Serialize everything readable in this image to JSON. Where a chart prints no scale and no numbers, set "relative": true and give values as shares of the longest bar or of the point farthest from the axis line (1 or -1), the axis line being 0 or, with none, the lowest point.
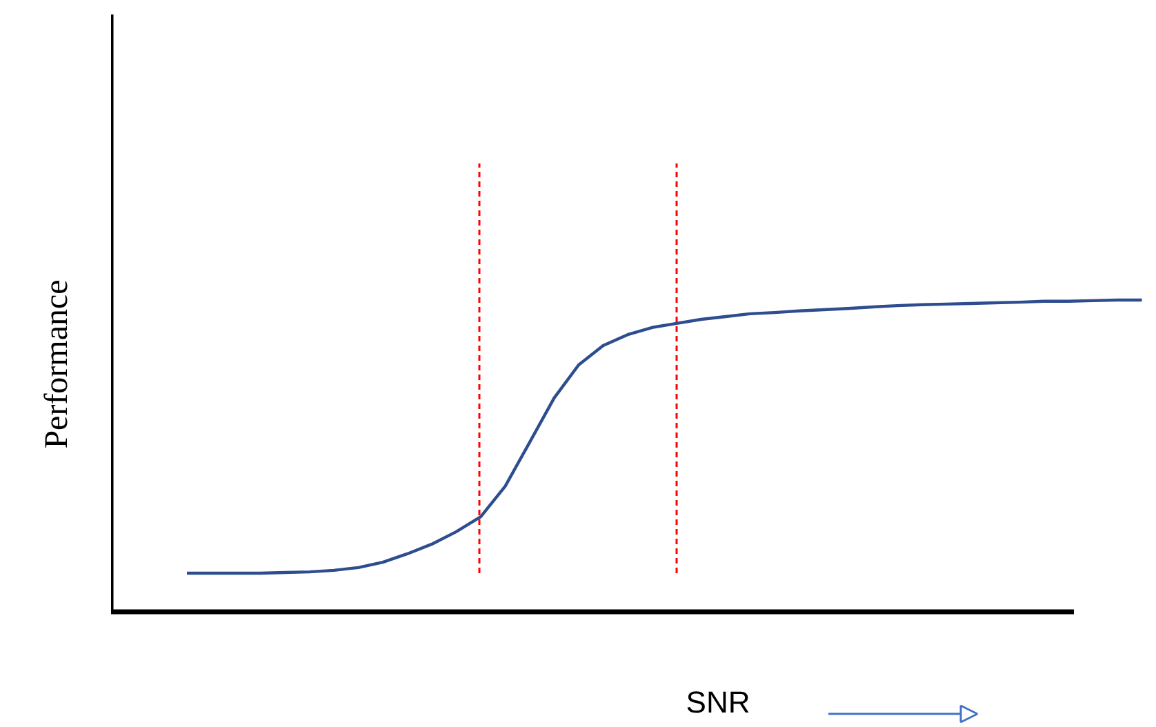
{
  "chart_data": {
    "type": "line",
    "relative": true,
    "xlabel": "SNR",
    "ylabel": "Performance",
    "categories": [
      null,
      null,
      null,
      null,
      null,
      null,
      null,
      null,
      null,
      null,
      null,
      null,
      null,
      null,
      null,
      null,
      null,
      null,
      null,
      null,
      null,
      null,
      null,
      null,
      null,
      null,
      null,
      null,
      null,
      null,
      null,
      null,
      null,
      null,
      null,
      null,
      null,
      null,
      null,
      null
    ],
    "series": [
      {
        "color": "#2e4d8f",
        "values": [
          0.124,
          0.124,
          0.124,
          0.124,
          0.126,
          0.128,
          0.133,
          0.142,
          0.159,
          0.186,
          0.217,
          0.257,
          0.305,
          0.403,
          0.544,
          0.686,
          0.792,
          0.854,
          0.889,
          0.912,
          0.925,
          0.938,
          0.947,
          0.956,
          0.96,
          0.965,
          0.969,
          0.973,
          0.978,
          0.982,
          0.985,
          0.987,
          0.989,
          0.991,
          0.993,
          0.996,
          0.996,
          0.998,
          1,
          1
        ]
      }
    ],
    "grid": false,
    "marker": "none",
    "line_style": "solid"
  }
}
